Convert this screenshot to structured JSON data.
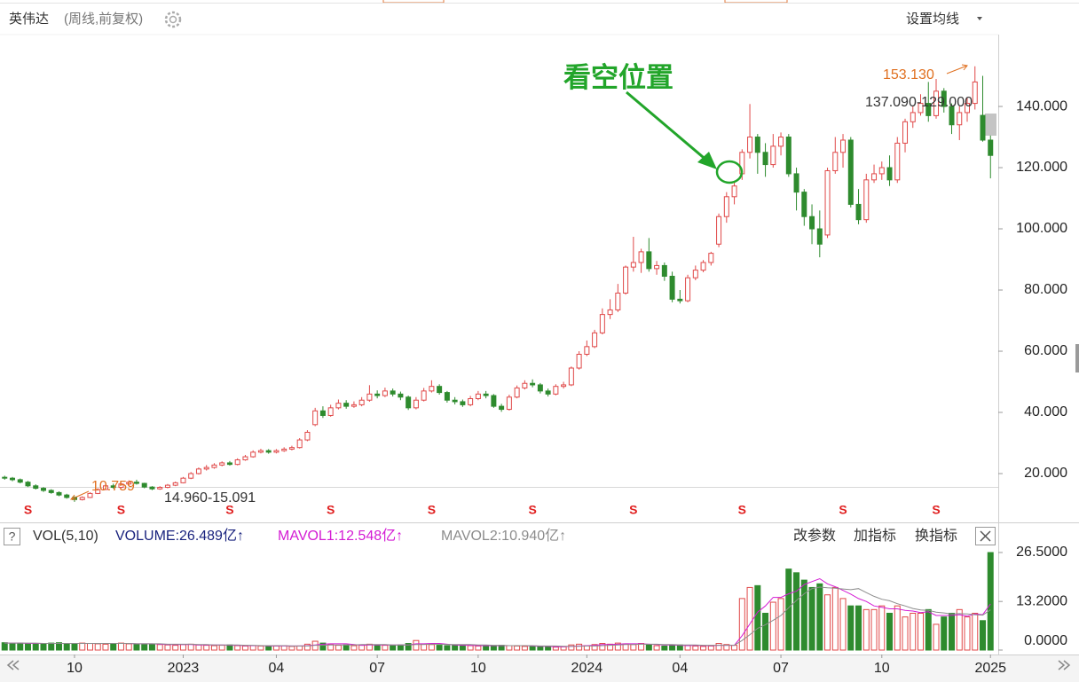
{
  "header": {
    "name": "英伟达",
    "period": "(周线,前复权)",
    "ma_button": "设置均线"
  },
  "annotations": {
    "high": "153.130",
    "range": "137.090-129.000",
    "low": "10.759",
    "gap": "14.960-15.091",
    "callout": "看空位置"
  },
  "toolbar": {
    "help": "?",
    "params": "改参数",
    "add": "加指标",
    "switch": "换指标"
  },
  "chart_data": [
    {
      "type": "candlestick",
      "rise_color": "#e04848",
      "fall_color": "#2e8b2e",
      "xlim": [
        -0.6,
        128
      ],
      "xticks": [
        {
          "value": 9,
          "label": "10"
        },
        {
          "value": 23,
          "label": "2023"
        },
        {
          "value": 35,
          "label": "04"
        },
        {
          "value": 48,
          "label": "07"
        },
        {
          "value": 61,
          "label": "10"
        },
        {
          "value": 75,
          "label": "2024"
        },
        {
          "value": 87,
          "label": "04"
        },
        {
          "value": 100,
          "label": "07"
        },
        {
          "value": 113,
          "label": "10"
        },
        {
          "value": 127,
          "label": "2025"
        }
      ],
      "ylim": [
        4.35,
        163.2
      ],
      "yticks": [
        {
          "value": 20,
          "label": "20.000"
        },
        {
          "value": 40,
          "label": "40.000"
        },
        {
          "value": 60,
          "label": "60.000"
        },
        {
          "value": 80,
          "label": "80.000"
        },
        {
          "value": 100,
          "label": "100.000"
        },
        {
          "value": 120,
          "label": "120.000"
        },
        {
          "value": 140,
          "label": "140.000"
        }
      ],
      "open": [
        18.8,
        18.5,
        18,
        17.2,
        16,
        15.2,
        14.5,
        13.8,
        13,
        12.2,
        11.5,
        12.2,
        13.5,
        14.8,
        16,
        15.5,
        16.6,
        17.2,
        16.8,
        15.6,
        15,
        15.5,
        16.2,
        17,
        18.5,
        20,
        21.5,
        22,
        22.8,
        23.5,
        23,
        24.5,
        25.5,
        27,
        27.5,
        27,
        27.5,
        28,
        28.5,
        31,
        36,
        40.5,
        39,
        41.5,
        43,
        42,
        42.5,
        44,
        46,
        45.5,
        47,
        46,
        45,
        41.5,
        44,
        47,
        48.5,
        46.5,
        44,
        43.5,
        42.5,
        44.5,
        46,
        45.5,
        42,
        41,
        45,
        48,
        49.5,
        49,
        47,
        46,
        48.5,
        49,
        54.5,
        59,
        61.5,
        66,
        72,
        73.5,
        79,
        87.5,
        89,
        92.5,
        87,
        88,
        84.5,
        77,
        76.5,
        84,
        86.5,
        89,
        95,
        104,
        110.5,
        118,
        125,
        130,
        125,
        121,
        127,
        130,
        118,
        112,
        104,
        100,
        98,
        119,
        125,
        129,
        108,
        103,
        116,
        118,
        120,
        116,
        128,
        135,
        138,
        141,
        137,
        145,
        140,
        134,
        138,
        141,
        137.09,
        129
      ],
      "high": [
        19.3,
        18.9,
        18.4,
        17.6,
        16.5,
        15.6,
        14.9,
        14.2,
        13.4,
        12.6,
        12.6,
        13.9,
        15.2,
        16.5,
        16.7,
        17,
        17.8,
        18,
        17,
        15.9,
        15.9,
        16.6,
        17.4,
        18.9,
        20.5,
        22,
        22.8,
        23.4,
        24,
        24.1,
        25,
        26.1,
        27.6,
        28.1,
        28,
        28,
        28.6,
        29.1,
        31.6,
        34.2,
        41.5,
        42,
        42.5,
        44.2,
        44,
        43.6,
        45,
        48.9,
        47.2,
        48.1,
        47.8,
        46.8,
        45.5,
        45,
        48,
        50.5,
        49.2,
        47,
        45,
        44.2,
        45.4,
        47,
        47,
        46,
        42.8,
        45.8,
        48.8,
        50.5,
        50.8,
        49.6,
        47.8,
        49.2,
        50,
        55,
        60,
        63.5,
        67,
        74,
        77,
        82,
        88,
        97.4,
        93.5,
        97,
        89.5,
        89,
        86,
        80,
        85,
        88,
        89.8,
        92.5,
        105,
        112,
        115.5,
        126,
        140.8,
        131,
        128,
        131,
        131.5,
        131,
        120,
        113,
        108,
        106,
        120,
        130,
        131,
        130,
        113,
        118,
        121,
        122,
        124,
        130,
        136,
        140,
        144,
        148,
        149,
        146,
        141,
        140,
        143,
        153.13,
        150,
        130.5
      ],
      "low": [
        18,
        17.5,
        16.8,
        15.6,
        14.8,
        14,
        13.4,
        12.6,
        11.8,
        10.759,
        11.2,
        12,
        13.3,
        14.6,
        15.1,
        15.2,
        16.3,
        16.4,
        15.2,
        14.6,
        14.7,
        15.2,
        15.9,
        16.8,
        18.2,
        19.7,
        21,
        21.6,
        22.4,
        22.6,
        22.7,
        24.2,
        25.2,
        26.6,
        26.5,
        26.6,
        27.1,
        27.6,
        28.2,
        30.6,
        35.5,
        38.2,
        38.6,
        41,
        41.2,
        41.5,
        42,
        43.5,
        44.6,
        45,
        45.2,
        44,
        40.8,
        41,
        43.6,
        46.5,
        45.8,
        43.2,
        42.6,
        41.8,
        42,
        44,
        44.6,
        41.5,
        40.2,
        40.6,
        44.6,
        47.5,
        48.2,
        46.2,
        45.2,
        45.6,
        47.8,
        48.6,
        54,
        58.4,
        61,
        65.5,
        70.5,
        72.8,
        78.5,
        86,
        85.6,
        86,
        85,
        83,
        76,
        75.6,
        76,
        83.2,
        85.8,
        88,
        94,
        102,
        108,
        116,
        123,
        118,
        117,
        120,
        124,
        117,
        106,
        101,
        95,
        90.7,
        97,
        118,
        120,
        107,
        101.5,
        102,
        115,
        116,
        114,
        115,
        125,
        133,
        137,
        135,
        136,
        138,
        131,
        129,
        135,
        139,
        128.5,
        116.5
      ],
      "close": [
        18.5,
        18,
        17.2,
        16,
        15.2,
        14.5,
        13.8,
        13,
        12.2,
        11.5,
        12.2,
        13.5,
        14.8,
        16,
        15.5,
        16.6,
        17.2,
        16.8,
        15.6,
        15,
        15.5,
        16.2,
        17,
        18.5,
        20,
        21.5,
        22,
        22.8,
        23.5,
        23,
        24.5,
        25.5,
        27,
        27.5,
        27,
        27.5,
        28,
        28.5,
        31,
        33.5,
        40.5,
        39,
        41.5,
        43,
        42,
        42.5,
        44,
        46,
        45.5,
        47,
        46,
        45,
        41.5,
        44,
        47,
        48.5,
        46.5,
        44,
        43.5,
        42.5,
        44.5,
        46,
        45.5,
        42,
        41,
        45,
        48,
        49.5,
        49,
        47,
        46,
        48.5,
        49,
        54.5,
        59,
        61.5,
        66,
        72,
        73.5,
        79,
        87.5,
        89,
        92.5,
        87,
        88,
        84.5,
        77,
        76.5,
        84,
        86.5,
        89,
        92,
        104,
        110.5,
        114,
        125,
        130,
        125,
        121,
        127,
        130,
        118,
        112,
        104,
        100,
        95,
        119,
        125,
        129,
        108,
        103,
        116,
        118,
        120,
        116,
        128,
        135,
        138,
        141,
        137,
        145,
        140,
        134,
        138,
        141,
        148,
        129,
        124
      ],
      "events": {
        "label": "S",
        "index": [
          3,
          15,
          29,
          42,
          55,
          68,
          81,
          95,
          108,
          120
        ]
      }
    },
    {
      "type": "bar",
      "legend": [
        "VOL(5,10)",
        "VOLUME:26.489亿↑",
        "MAVOL1:12.548亿↑",
        "MAVOL2:10.940亿↑"
      ],
      "xlim": [
        -0.6,
        128
      ],
      "ylim": [
        0,
        27.7
      ],
      "yticks": [
        {
          "value": 26.5,
          "label": "26.5000"
        },
        {
          "value": 13.2,
          "label": "13.2000"
        },
        {
          "value": 0,
          "label": "0.0000"
        }
      ],
      "values": [
        2,
        1.8,
        1.9,
        1.7,
        1.8,
        1.6,
        1.9,
        2,
        1.8,
        1.7,
        1.9,
        1.8,
        1.7,
        1.6,
        1.8,
        1.9,
        1.7,
        1.6,
        1.5,
        1.6,
        1.5,
        1.4,
        1.3,
        1.5,
        1.6,
        1.4,
        1.3,
        1.2,
        1.3,
        1.4,
        1.2,
        1.1,
        1.2,
        1.1,
        1,
        1.1,
        1.2,
        1,
        1.1,
        1.6,
        2.4,
        1.9,
        1.5,
        1.3,
        1.4,
        1.2,
        1.3,
        1.6,
        1.4,
        1.3,
        1.2,
        1.4,
        1.8,
        2.6,
        1.6,
        1.5,
        1.3,
        1.2,
        1.4,
        1.3,
        1.2,
        1.1,
        1,
        1.2,
        1.3,
        1.2,
        1.1,
        1,
        1,
        0.9,
        0.9,
        0.8,
        0.9,
        1.4,
        1.6,
        1.2,
        1.5,
        1.8,
        1.6,
        1.9,
        1.7,
        1.5,
        1.8,
        1.4,
        1.2,
        1.1,
        1.3,
        1.4,
        1.2,
        1.1,
        1,
        1.1,
        1.8,
        1.5,
        1.3,
        14,
        17,
        17.5,
        10,
        13,
        14,
        22,
        21,
        19,
        17,
        18,
        15,
        17,
        14,
        12,
        12,
        11,
        11,
        12,
        10,
        12,
        9,
        10,
        10,
        11,
        7,
        9,
        10,
        11,
        9,
        10,
        8,
        26.489
      ],
      "series": [
        {
          "name": "MAVOL1",
          "color": "#d41cd4",
          "values": [
            1.9,
            1.9,
            1.9,
            1.8,
            1.8,
            1.8,
            1.8,
            1.8,
            1.8,
            1.8,
            1.8,
            1.8,
            1.8,
            1.8,
            1.8,
            1.8,
            1.8,
            1.7,
            1.7,
            1.7,
            1.6,
            1.5,
            1.5,
            1.5,
            1.5,
            1.4,
            1.4,
            1.4,
            1.4,
            1.3,
            1.3,
            1.2,
            1.2,
            1.2,
            1.1,
            1.1,
            1.1,
            1.1,
            1.1,
            1.2,
            1.4,
            1.6,
            1.7,
            1.7,
            1.7,
            1.5,
            1.3,
            1.4,
            1.4,
            1.4,
            1.4,
            1.4,
            1.4,
            1.7,
            1.7,
            1.8,
            1.8,
            1.6,
            1.4,
            1.3,
            1.3,
            1.2,
            1.2,
            1.2,
            1.2,
            1.2,
            1.2,
            1.2,
            1.1,
            1,
            1,
            0.9,
            0.9,
            1,
            1.1,
            1.2,
            1.3,
            1.5,
            1.5,
            1.6,
            1.7,
            1.7,
            1.7,
            1.6,
            1.5,
            1.4,
            1.4,
            1.3,
            1.2,
            1.3,
            1.2,
            1.2,
            1.3,
            1.3,
            1.3,
            3.9,
            7.1,
            10.3,
            12,
            14.3,
            14.3,
            15.3,
            16,
            17.8,
            18.6,
            19.4,
            18,
            17.2,
            16.2,
            15.2,
            14,
            13.2,
            12,
            11.6,
            11.2,
            11.2,
            10.8,
            10.6,
            10.2,
            10.4,
            9.4,
            9.4,
            9.4,
            9.6,
            9.2,
            9.8,
            9.6,
            12.548
          ]
        },
        {
          "name": "MAVOL2",
          "color": "#8c8c8c",
          "values": [
            1.9,
            1.9,
            1.9,
            1.9,
            1.9,
            1.8,
            1.8,
            1.8,
            1.8,
            1.8,
            1.8,
            1.8,
            1.8,
            1.8,
            1.8,
            1.8,
            1.8,
            1.7,
            1.7,
            1.7,
            1.7,
            1.6,
            1.6,
            1.6,
            1.6,
            1.5,
            1.5,
            1.4,
            1.4,
            1.4,
            1.4,
            1.3,
            1.3,
            1.2,
            1.2,
            1.2,
            1.2,
            1.1,
            1.1,
            1.1,
            1.3,
            1.3,
            1.4,
            1.4,
            1.4,
            1.4,
            1.5,
            1.5,
            1.5,
            1.5,
            1.4,
            1.4,
            1.4,
            1.5,
            1.5,
            1.6,
            1.6,
            1.5,
            1.5,
            1.5,
            1.5,
            1.4,
            1.4,
            1.3,
            1.3,
            1.2,
            1.2,
            1.2,
            1.2,
            1.1,
            1.1,
            1.1,
            1,
            1,
            1,
            1.1,
            1.1,
            1.2,
            1.3,
            1.4,
            1.5,
            1.5,
            1.6,
            1.6,
            1.6,
            1.5,
            1.5,
            1.4,
            1.4,
            1.4,
            1.3,
            1.3,
            1.3,
            1.3,
            1.3,
            2.6,
            4.2,
            5.9,
            6.9,
            8.1,
            9.4,
            11.5,
            13.5,
            15.3,
            16.7,
            17.1,
            16.9,
            16.8,
            16.6,
            16.4,
            16.7,
            15.6,
            14.6,
            13.8,
            13.4,
            12.6,
            12,
            11.3,
            10.9,
            10.8,
            10.3,
            10.1,
            9.8,
            9.9,
            9.8,
            9.6,
            9.5,
            10.94
          ]
        }
      ]
    }
  ]
}
